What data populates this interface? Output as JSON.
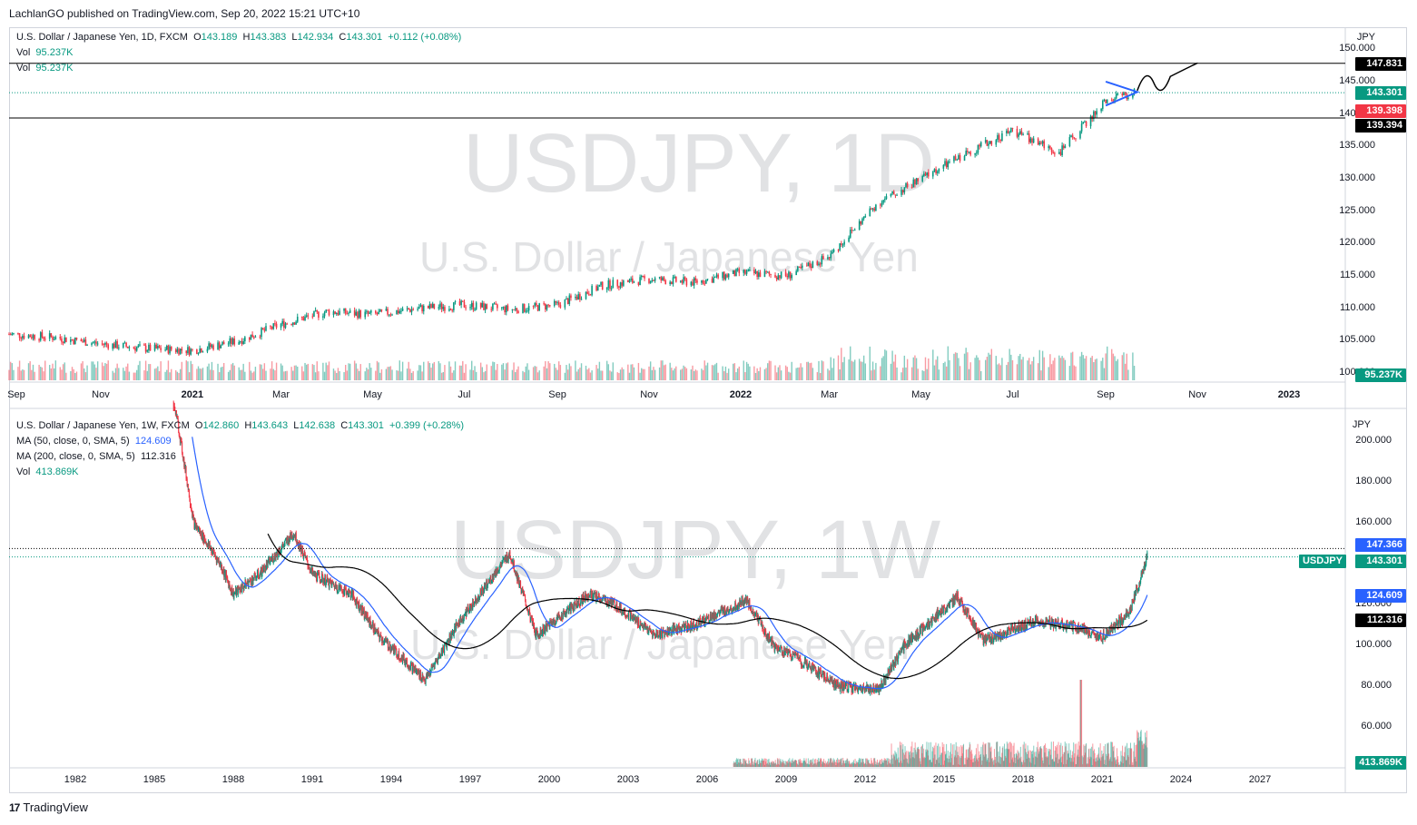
{
  "header": {
    "published": "LachlanGO published on TradingView.com, Sep 20, 2022 15:21 UTC+10"
  },
  "footer": {
    "brand": "TradingView",
    "logo": "17"
  },
  "pane1": {
    "symbol_line": "U.S. Dollar / Japanese Yen, 1D, FXCM",
    "ohlc": {
      "o_label": "O",
      "o": "143.189",
      "h_label": "H",
      "h": "143.383",
      "l_label": "L",
      "l": "142.934",
      "c_label": "C",
      "c": "143.301",
      "chg": "+0.112 (+0.08%)"
    },
    "vol_rows": [
      {
        "label": "Vol",
        "value": "95.237K"
      },
      {
        "label": "Vol",
        "value": "95.237K"
      }
    ],
    "watermark_main": "USDJPY, 1D",
    "watermark_sub": "U.S. Dollar / Japanese Yen",
    "currency": "JPY",
    "price_ticks": [
      "150.000",
      "145.000",
      "140.000",
      "135.000",
      "130.000",
      "125.000",
      "120.000",
      "115.000",
      "110.000",
      "105.000",
      "100.000"
    ],
    "time_labels": [
      "Sep",
      "Nov",
      "2021",
      "Mar",
      "May",
      "Jul",
      "Sep",
      "Nov",
      "2022",
      "Mar",
      "May",
      "Jul",
      "Sep",
      "Nov",
      "2023"
    ],
    "price_tags": [
      {
        "text": "147.831",
        "color": "#000000"
      },
      {
        "text": "143.301",
        "color": "#089981"
      },
      {
        "text": "139.398",
        "color": "#f23645"
      },
      {
        "text": "139.394",
        "color": "#000000"
      },
      {
        "text": "95.237K",
        "color": "#089981"
      }
    ],
    "hlines": [
      147.831,
      139.394
    ]
  },
  "pane2": {
    "symbol_line": "U.S. Dollar / Japanese Yen, 1W, FXCM",
    "ohlc": {
      "o_label": "O",
      "o": "142.860",
      "h_label": "H",
      "h": "143.643",
      "l_label": "L",
      "l": "142.638",
      "c_label": "C",
      "c": "143.301",
      "chg": "+0.399 (+0.28%)"
    },
    "ma50": {
      "label": "MA (50, close, 0, SMA, 5)",
      "value": "124.609",
      "color": "#2962ff"
    },
    "ma200": {
      "label": "MA (200, close, 0, SMA, 5)",
      "value": "112.316",
      "color": "#000000"
    },
    "vol": {
      "label": "Vol",
      "value": "413.869K"
    },
    "watermark_main": "USDJPY, 1W",
    "watermark_sub": "U.S. Dollar / Japanese Yen",
    "currency": "JPY",
    "price_ticks": [
      "200.000",
      "180.000",
      "160.000",
      "140.000",
      "120.000",
      "100.000",
      "80.000",
      "60.000"
    ],
    "time_labels": [
      "1982",
      "1985",
      "1988",
      "1991",
      "1994",
      "1997",
      "2000",
      "2003",
      "2006",
      "2009",
      "2012",
      "2015",
      "2018",
      "2021",
      "2024",
      "2027"
    ],
    "price_tags": [
      {
        "text": "147.366",
        "color": "#2962ff"
      },
      {
        "text": "143.301",
        "color": "#089981"
      },
      {
        "text": "124.609",
        "color": "#2962ff"
      },
      {
        "text": "112.316",
        "color": "#000000"
      },
      {
        "text": "413.869K",
        "color": "#089981"
      }
    ],
    "symbol_tag": "USDJPY",
    "hline": 147.366
  },
  "chart_data": [
    {
      "type": "candlestick",
      "title": "U.S. Dollar / Japanese Yen, 1D, FXCM",
      "ylim": [
        100,
        152
      ],
      "x": [
        "2020-09",
        "2020-11",
        "2021-01",
        "2021-03",
        "2021-05",
        "2021-07",
        "2021-09",
        "2021-11",
        "2022-01",
        "2022-03",
        "2022-05",
        "2022-07",
        "2022-09",
        "2022-11",
        "2023-01"
      ],
      "close_path": [
        [
          "2020-09-01",
          106.0
        ],
        [
          "2020-10-01",
          105.5
        ],
        [
          "2020-11-01",
          104.5
        ],
        [
          "2020-12-01",
          103.8
        ],
        [
          "2021-01-01",
          103.5
        ],
        [
          "2021-02-01",
          105.0
        ],
        [
          "2021-03-01",
          107.5
        ],
        [
          "2021-04-01",
          109.5
        ],
        [
          "2021-05-01",
          109.0
        ],
        [
          "2021-06-01",
          110.0
        ],
        [
          "2021-07-01",
          110.5
        ],
        [
          "2021-08-01",
          109.8
        ],
        [
          "2021-09-01",
          110.5
        ],
        [
          "2021-10-01",
          113.5
        ],
        [
          "2021-11-01",
          114.5
        ],
        [
          "2021-12-01",
          114.0
        ],
        [
          "2022-01-01",
          115.5
        ],
        [
          "2022-02-01",
          115.0
        ],
        [
          "2022-03-01",
          118.0
        ],
        [
          "2022-04-01",
          126.0
        ],
        [
          "2022-05-01",
          130.0
        ],
        [
          "2022-06-01",
          134.0
        ],
        [
          "2022-07-01",
          137.5
        ],
        [
          "2022-08-01",
          134.0
        ],
        [
          "2022-09-01",
          142.0
        ],
        [
          "2022-09-20",
          143.301
        ]
      ],
      "horizontal_lines": [
        147.831,
        139.394
      ],
      "last_close": 143.301,
      "volume_last": "95.237K"
    },
    {
      "type": "candlestick",
      "title": "U.S. Dollar / Japanese Yen, 1W, FXCM",
      "ylim": [
        56,
        206
      ],
      "x": [
        "1982",
        "1985",
        "1988",
        "1991",
        "1994",
        "1997",
        "2000",
        "2003",
        "2006",
        "2009",
        "2012",
        "2015",
        "2018",
        "2021",
        "2024",
        "2027"
      ],
      "close_path": [
        [
          "1985.5",
          240.0
        ],
        [
          "1986.0",
          200.0
        ],
        [
          "1986.5",
          160.0
        ],
        [
          "1987.5",
          140.0
        ],
        [
          "1988.0",
          125.0
        ],
        [
          "1989.0",
          135.0
        ],
        [
          "1990.3",
          155.0
        ],
        [
          "1991.0",
          135.0
        ],
        [
          "1992.5",
          125.0
        ],
        [
          "1993.5",
          105.0
        ],
        [
          "1995.3",
          83.0
        ],
        [
          "1996.5",
          110.0
        ],
        [
          "1998.5",
          145.0
        ],
        [
          "1999.5",
          105.0
        ],
        [
          "2001.5",
          125.0
        ],
        [
          "2002.5",
          120.0
        ],
        [
          "2004.0",
          105.0
        ],
        [
          "2005.5",
          110.0
        ],
        [
          "2007.5",
          122.0
        ],
        [
          "2008.5",
          100.0
        ],
        [
          "2009.5",
          93.0
        ],
        [
          "2011.0",
          80.0
        ],
        [
          "2012.5",
          78.0
        ],
        [
          "2013.5",
          100.0
        ],
        [
          "2015.5",
          124.0
        ],
        [
          "2016.5",
          102.0
        ],
        [
          "2018.5",
          112.0
        ],
        [
          "2020.0",
          109.0
        ],
        [
          "2021.0",
          104.0
        ],
        [
          "2021.5",
          110.0
        ],
        [
          "2022.0",
          115.0
        ],
        [
          "2022.4",
          130.0
        ],
        [
          "2022.72",
          143.301
        ]
      ],
      "ma50_value": 124.609,
      "ma200_value": 112.316,
      "horizontal_line": 147.366,
      "last_close": 143.301,
      "volume_last": "413.869K"
    }
  ]
}
